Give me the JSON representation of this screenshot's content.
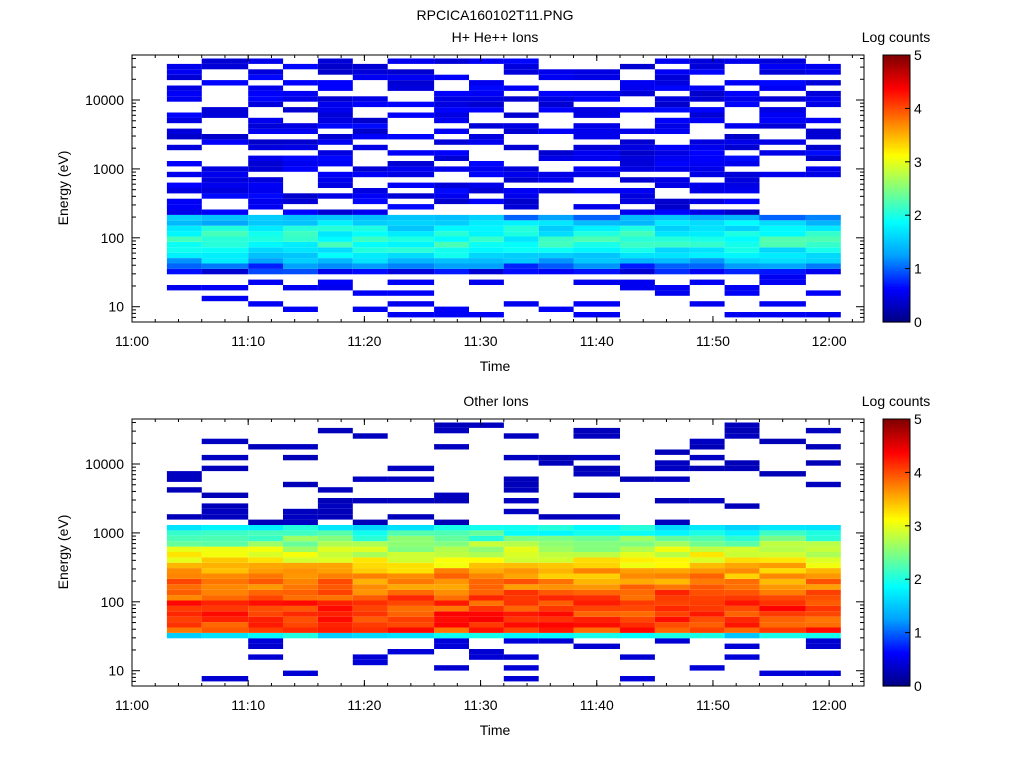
{
  "figure_title": "RPCICA160102T11.PNG",
  "colors": {
    "colormap": [
      "#000080",
      "#0000ff",
      "#00a0ff",
      "#00ffff",
      "#80ff80",
      "#ffff00",
      "#ff8000",
      "#ff0000",
      "#800000"
    ],
    "background": "#ffffff",
    "axis": "#000000"
  },
  "chart_data": [
    {
      "type": "heatmap",
      "title": "H+ He++ Ions",
      "xlabel": "Time",
      "ylabel": "Energy (eV)",
      "y_scale": "log",
      "ylim": [
        6,
        45000
      ],
      "xlim": [
        "11:00",
        "12:03"
      ],
      "x_ticks": [
        "11:00",
        "11:10",
        "11:20",
        "11:30",
        "11:40",
        "11:50",
        "12:00"
      ],
      "y_ticks": [
        "10",
        "100",
        "1000",
        "10000"
      ],
      "colorbar": {
        "label": "Log counts",
        "range": [
          0,
          5
        ],
        "ticks": [
          "0",
          "1",
          "2",
          "3",
          "4",
          "5"
        ]
      },
      "time_bins": [
        "11:03",
        "11:06",
        "11:10",
        "11:13",
        "11:16",
        "11:19",
        "11:22",
        "11:26",
        "11:29",
        "11:32",
        "11:35",
        "11:38",
        "11:42",
        "11:45",
        "11:48",
        "11:51",
        "11:54",
        "11:58"
      ],
      "profile": {
        "background_level": 0.6,
        "bands": [
          {
            "energy_range_eV": [
              45,
              230
            ],
            "peak_eV": 90,
            "peak_log_counts": 2.0
          },
          {
            "energy_range_eV": [
              30,
              45
            ],
            "peak_eV": 38,
            "peak_log_counts": 1.0
          }
        ],
        "sparse_low_energy_eV": [
          8,
          30
        ]
      }
    },
    {
      "type": "heatmap",
      "title": "Other Ions",
      "xlabel": "Time",
      "ylabel": "Energy (eV)",
      "y_scale": "log",
      "ylim": [
        6,
        45000
      ],
      "xlim": [
        "11:00",
        "12:03"
      ],
      "x_ticks": [
        "11:00",
        "11:10",
        "11:20",
        "11:30",
        "11:40",
        "11:50",
        "12:00"
      ],
      "y_ticks": [
        "10",
        "100",
        "1000",
        "10000"
      ],
      "colorbar": {
        "label": "Log counts",
        "range": [
          0,
          5
        ],
        "ticks": [
          "0",
          "1",
          "2",
          "3",
          "4",
          "5"
        ]
      },
      "time_bins": [
        "11:03",
        "11:06",
        "11:10",
        "11:13",
        "11:16",
        "11:19",
        "11:22",
        "11:26",
        "11:29",
        "11:32",
        "11:35",
        "11:38",
        "11:42",
        "11:45",
        "11:48",
        "11:51",
        "11:54",
        "11:58"
      ],
      "profile": {
        "background_level": 0.3,
        "bands": [
          {
            "energy_range_eV": [
              36,
              1200
            ],
            "peak_eV": 60,
            "peak_log_counts": 4.1
          },
          {
            "energy_range_eV": [
              32,
              36
            ],
            "peak_eV": 34,
            "peak_log_counts": 1.8
          }
        ],
        "sparse_low_energy_eV": [
          8,
          32
        ]
      }
    }
  ]
}
